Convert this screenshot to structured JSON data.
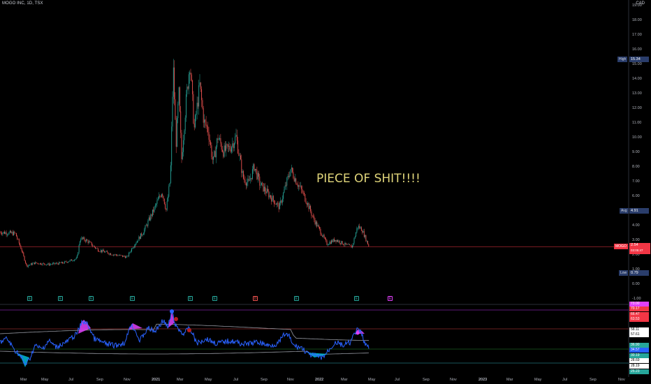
{
  "header": {
    "symbol_title": "MOGO INC, 1D, TSX",
    "currency": "CAD"
  },
  "annotation": "PIECE OF SHIT!!!!",
  "price_axis": {
    "labels": [
      "19.00",
      "18.00",
      "17.00",
      "16.00",
      "15.00",
      "14.00",
      "13.00",
      "12.00",
      "11.00",
      "10.00",
      "9.00",
      "8.00",
      "7.00",
      "6.00",
      "5.00",
      "4.00",
      "3.00",
      "2.00",
      "1.00",
      "0.00",
      "-1.00"
    ]
  },
  "price_tags": {
    "high": {
      "name": "High",
      "value": "15.34",
      "color": "#2a3d6b"
    },
    "avg": {
      "name": "Avg",
      "value": "4.91",
      "color": "#2a3d6b"
    },
    "symbol": {
      "name": "MOGO",
      "value": "2.54",
      "sub": "03:05:47",
      "color": "#f23645"
    },
    "low": {
      "name": "Low",
      "value": "0.79",
      "color": "#2a3d6b"
    }
  },
  "time_axis": {
    "labels": [
      "Mar",
      "May",
      "Jul",
      "Sep",
      "Nov",
      "2021",
      "Mar",
      "May",
      "Jul",
      "Sep",
      "Nov",
      "2022",
      "Mar",
      "May",
      "Jul",
      "Sep",
      "Nov",
      "2023",
      "Mar",
      "May",
      "Jul",
      "Sep",
      "Nov"
    ]
  },
  "events": [
    {
      "label": "E",
      "type": "earnings"
    },
    {
      "label": "E",
      "type": "earnings"
    },
    {
      "label": "E",
      "type": "earnings"
    },
    {
      "label": "E",
      "type": "earnings"
    },
    {
      "label": "E",
      "type": "earnings"
    },
    {
      "label": "E",
      "type": "earnings"
    },
    {
      "label": "D",
      "type": "dividend"
    },
    {
      "label": "E",
      "type": "earnings"
    },
    {
      "label": "E",
      "type": "earnings"
    },
    {
      "label": "E",
      "type": "upcoming"
    }
  ],
  "oscillator_tags": [
    {
      "value": "73.00",
      "color": "#e040fb"
    },
    {
      "value": "70.17",
      "color": "#f23645"
    },
    {
      "value": "66.47",
      "color": "#f23645"
    },
    {
      "value": "63.53",
      "color": "#f23645"
    },
    {
      "value": "58.11",
      "color": "#ffffff"
    },
    {
      "value": "57.61",
      "color": "#ffffff"
    },
    {
      "value": "36.90",
      "color": "#26a69a"
    },
    {
      "value": "34.57",
      "color": "#2962ff"
    },
    {
      "value": "30.19",
      "color": "#26a69a"
    },
    {
      "value": "28.69",
      "color": "#ffffff"
    },
    {
      "value": "28.19",
      "color": "#ffffff"
    },
    {
      "value": "25.23",
      "color": "#26a69a"
    }
  ],
  "colors": {
    "up": "#26a69a",
    "down": "#ef5350",
    "osc_line": "#2962ff",
    "price_line": "#f23645",
    "band": "#9598a1"
  }
}
